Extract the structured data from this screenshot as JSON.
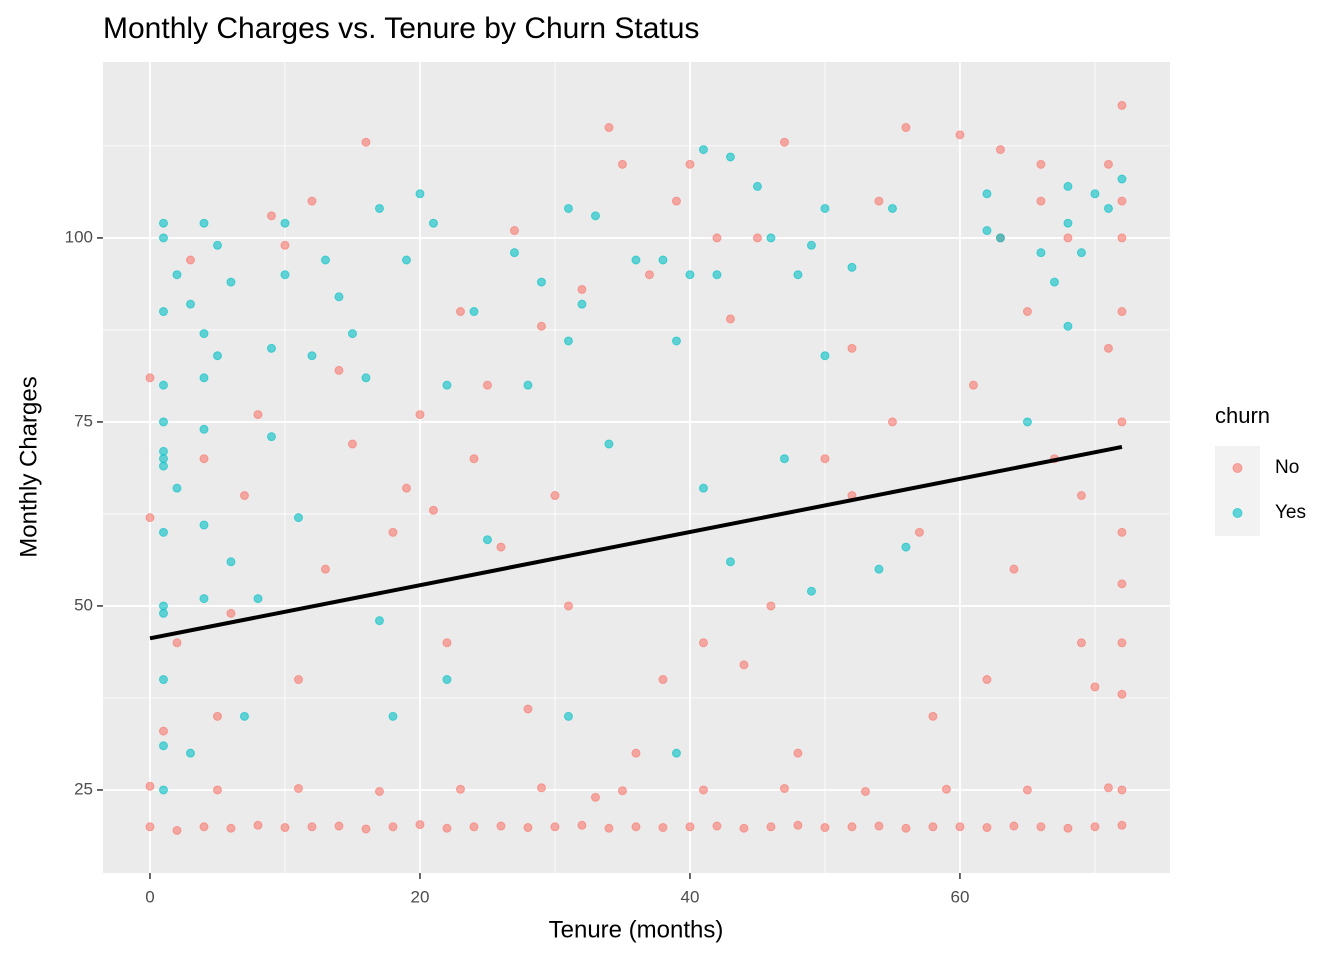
{
  "chart_data": {
    "type": "scatter",
    "title": "Monthly Charges vs. Tenure by Churn Status",
    "x_label": "Tenure (months)",
    "y_label": "Monthly Charges",
    "legend_title": "churn",
    "legend_position": "right",
    "xlim": [
      -3.48,
      75.56
    ],
    "ylim": [
      13.72,
      123.9
    ],
    "xticks": [
      0,
      20,
      40,
      60
    ],
    "yticks": [
      25,
      50,
      75,
      100
    ],
    "minor_xticks": [
      10,
      30,
      50,
      70
    ],
    "minor_yticks": [
      37.5,
      62.5,
      87.5,
      112.5
    ],
    "grid": true,
    "point_opacity": 0.6,
    "series": [
      {
        "name": "No",
        "color": "#F8766D",
        "x": [
          0,
          2,
          4,
          6,
          8,
          10,
          12,
          14,
          16,
          18,
          20,
          22,
          24,
          26,
          28,
          30,
          32,
          34,
          36,
          38,
          40,
          42,
          44,
          46,
          48,
          50,
          52,
          54,
          56,
          58,
          60,
          62,
          64,
          66,
          68,
          70,
          72,
          0,
          5,
          11,
          17,
          23,
          29,
          35,
          41,
          47,
          53,
          59,
          65,
          71,
          72,
          0,
          0,
          3,
          6,
          8,
          9,
          12,
          14,
          16,
          18,
          20,
          22,
          24,
          25,
          27,
          28,
          30,
          32,
          34,
          35,
          37,
          38,
          40,
          41,
          43,
          45,
          47,
          48,
          50,
          52,
          54,
          56,
          57,
          58,
          60,
          61,
          62,
          63,
          64,
          65,
          66,
          67,
          68,
          69,
          70,
          71,
          72,
          72,
          72,
          72,
          72,
          72,
          72,
          72,
          72,
          71,
          69,
          66,
          63,
          55,
          52,
          46,
          44,
          42,
          39,
          36,
          33,
          31,
          29,
          26,
          23,
          21,
          19,
          15,
          13,
          11,
          10,
          7,
          5,
          4,
          2,
          1
        ],
        "values": [
          20,
          19.5,
          20,
          19.8,
          20.2,
          19.9,
          20,
          20.1,
          19.7,
          20,
          20.3,
          19.8,
          20,
          20.1,
          19.9,
          20,
          20.2,
          19.8,
          20,
          19.9,
          20,
          20.1,
          19.8,
          20,
          20.2,
          19.9,
          20,
          20.1,
          19.8,
          20,
          20,
          19.9,
          20.1,
          20,
          19.8,
          20,
          20.2,
          25.5,
          25,
          25.2,
          24.8,
          25.1,
          25.3,
          24.9,
          25,
          25.2,
          24.8,
          25.1,
          25,
          25.3,
          25,
          81,
          62,
          97,
          49,
          76,
          103,
          105,
          82,
          113,
          60,
          76,
          45,
          70,
          80,
          101,
          36,
          65,
          93,
          115,
          110,
          95,
          40,
          110,
          45,
          89,
          100,
          113,
          30,
          70,
          85,
          105,
          115,
          60,
          35,
          114,
          80,
          40,
          100,
          55,
          90,
          110,
          70,
          100,
          45,
          39,
          110,
          118,
          105,
          90,
          75,
          60,
          53,
          45,
          38,
          100,
          85,
          65,
          105,
          112,
          75,
          65,
          50,
          42,
          100,
          105,
          30,
          24,
          50,
          88,
          58,
          90,
          63,
          66,
          72,
          55,
          40,
          99,
          65,
          35,
          70,
          45,
          33
        ]
      },
      {
        "name": "Yes",
        "color": "#00BFC4",
        "x": [
          1,
          1,
          1,
          1,
          1,
          1,
          1,
          1,
          1,
          1,
          1,
          1,
          1,
          1,
          2,
          2,
          3,
          3,
          4,
          4,
          4,
          4,
          4,
          4,
          5,
          5,
          6,
          6,
          7,
          8,
          9,
          9,
          10,
          10,
          11,
          12,
          13,
          14,
          15,
          16,
          17,
          17,
          18,
          19,
          20,
          21,
          22,
          22,
          24,
          25,
          27,
          28,
          29,
          31,
          31,
          31,
          32,
          33,
          34,
          36,
          38,
          39,
          39,
          40,
          41,
          41,
          42,
          43,
          43,
          45,
          46,
          47,
          48,
          49,
          49,
          50,
          50,
          52,
          54,
          55,
          56,
          62,
          62,
          63,
          66,
          68,
          68,
          70,
          72,
          65,
          68,
          71,
          67,
          69
        ],
        "values": [
          102,
          100,
          90,
          80,
          75,
          71,
          70,
          69,
          60,
          50,
          49,
          40,
          31,
          25,
          95,
          66,
          91,
          30,
          102,
          87,
          81,
          74,
          61,
          51,
          99,
          84,
          94,
          56,
          35,
          51,
          85,
          73,
          102,
          95,
          62,
          84,
          97,
          92,
          87,
          81,
          104,
          48,
          35,
          97,
          106,
          102,
          80,
          40,
          90,
          59,
          98,
          80,
          94,
          104,
          86,
          35,
          91,
          103,
          72,
          97,
          97,
          86,
          30,
          95,
          112,
          66,
          95,
          111,
          56,
          107,
          100,
          70,
          95,
          99,
          52,
          84,
          104,
          96,
          55,
          104,
          58,
          101,
          106,
          100,
          98,
          102,
          88,
          106,
          108,
          75,
          107,
          104,
          94,
          98
        ]
      }
    ],
    "trend_line": {
      "color": "#000000",
      "x": [
        0,
        72
      ],
      "values": [
        45.6,
        71.6
      ]
    }
  }
}
